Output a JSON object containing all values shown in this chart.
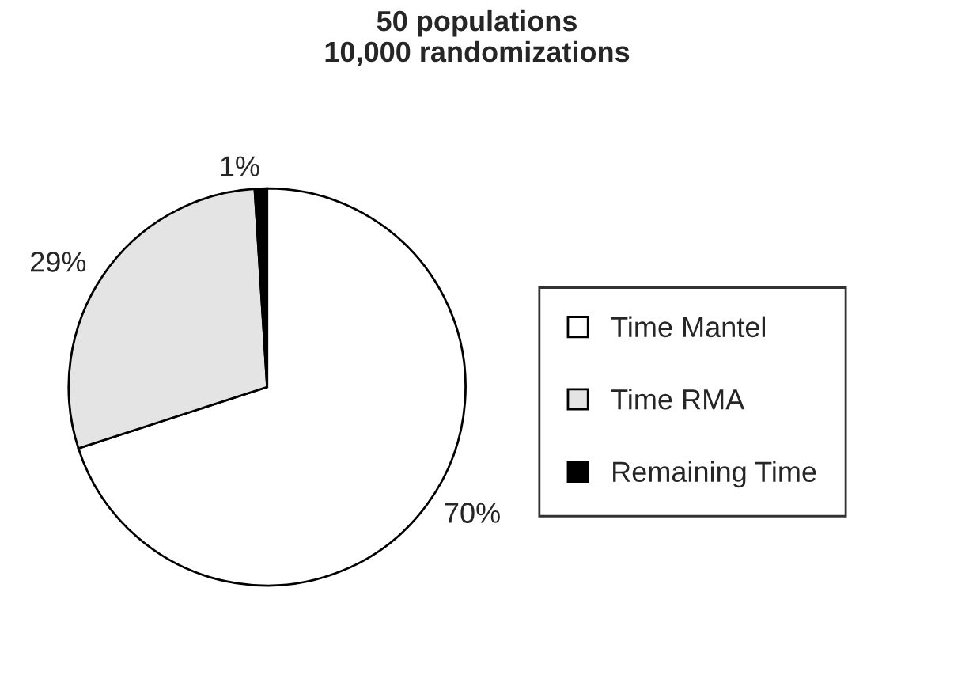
{
  "chart_data": {
    "type": "pie",
    "title": "50 populations\n10,000 randomizations",
    "categories": [
      "Time Mantel",
      "Time RMA",
      "Remaining Time"
    ],
    "values": [
      70,
      29,
      1
    ],
    "value_labels": [
      "70%",
      "29%",
      "1%"
    ],
    "colors": [
      "#ffffff",
      "#e4e4e4",
      "#000000"
    ],
    "legend": "right"
  }
}
